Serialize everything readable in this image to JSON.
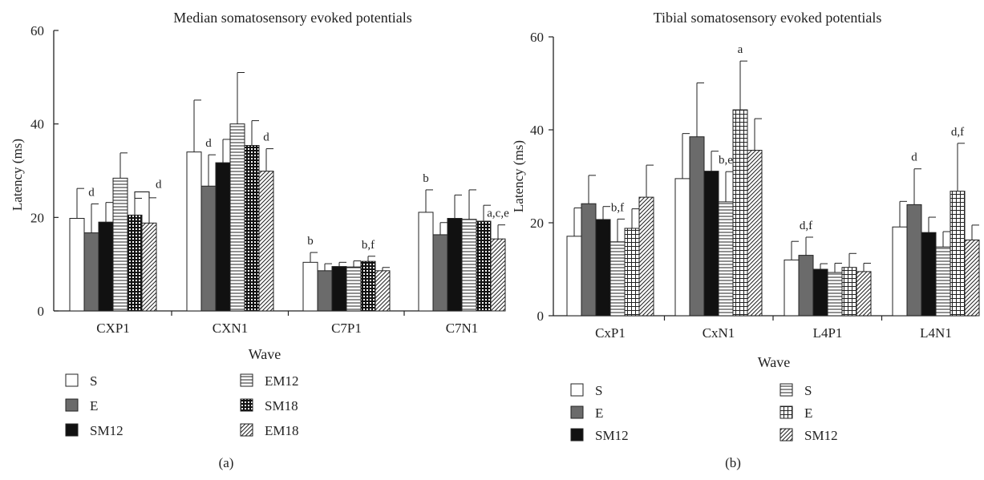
{
  "colors": {
    "solid_gray": "#6b6b6b",
    "solid_black": "#111111",
    "stroke": "#222222",
    "background": "#ffffff"
  },
  "chart_data": [
    {
      "type": "bar",
      "title": "Median somatosensory evoked potentials",
      "xlabel": "Wave",
      "ylabel": "Latency (ms)",
      "ylim": [
        0,
        60
      ],
      "yticks": [
        "0",
        "20",
        "40",
        "60"
      ],
      "grid": false,
      "panel_label": "(a)",
      "categories": [
        "CXP1",
        "CXN1",
        "C7P1",
        "C7N1"
      ],
      "series": [
        {
          "name": "S",
          "pattern": "white",
          "values": [
            19.8,
            34.0,
            10.4,
            21.1
          ],
          "errors": [
            6.4,
            11.1,
            2.1,
            4.8
          ]
        },
        {
          "name": "E",
          "pattern": "gray",
          "values": [
            16.7,
            26.7,
            8.6,
            16.3
          ],
          "errors": [
            6.2,
            6.7,
            1.5,
            2.6
          ]
        },
        {
          "name": "SM12",
          "pattern": "black",
          "values": [
            19.0,
            31.7,
            9.5,
            19.8
          ],
          "errors": [
            4.2,
            5.0,
            0.9,
            5.0
          ]
        },
        {
          "name": "EM12",
          "pattern": "hlines",
          "values": [
            28.4,
            40.0,
            9.4,
            19.6
          ],
          "errors": [
            5.4,
            11.0,
            1.3,
            6.3
          ]
        },
        {
          "name": "SM18",
          "pattern": "grid",
          "values": [
            20.5,
            35.4,
            10.6,
            19.2
          ],
          "errors": [
            3.6,
            5.3,
            1.1,
            3.4
          ]
        },
        {
          "name": "EM18",
          "pattern": "diag",
          "values": [
            18.8,
            29.9,
            8.6,
            15.4
          ],
          "errors": [
            5.4,
            4.8,
            0.7,
            3.0
          ]
        }
      ],
      "annotations": [
        {
          "text": "d",
          "category": 0,
          "series": 1
        },
        {
          "text": "d",
          "category": 0,
          "series": 4,
          "bracket_to_series": 5
        },
        {
          "text": "d",
          "category": 1,
          "series": 1
        },
        {
          "text": "d",
          "category": 1,
          "series": 5
        },
        {
          "text": "b",
          "category": 2,
          "series": 0
        },
        {
          "text": "b,f",
          "category": 2,
          "series": 4
        },
        {
          "text": "b",
          "category": 3,
          "series": 0
        },
        {
          "text": "a,c,e",
          "category": 3,
          "series": 5
        }
      ]
    },
    {
      "type": "bar",
      "title": "Tibial somatosensory evoked potentials",
      "xlabel": "Wave",
      "ylabel": "Latency (ms)",
      "ylim": [
        0,
        60
      ],
      "yticks": [
        "0",
        "20",
        "40",
        "60"
      ],
      "grid": false,
      "panel_label": "(b)",
      "categories": [
        "CxP1",
        "CxN1",
        "L4P1",
        "L4N1"
      ],
      "series": [
        {
          "name": "S",
          "pattern": "white",
          "values": [
            17.1,
            29.5,
            12.0,
            19.1
          ],
          "errors": [
            6.1,
            9.7,
            4.0,
            5.5
          ]
        },
        {
          "name": "E",
          "pattern": "gray",
          "values": [
            24.1,
            38.5,
            13.0,
            23.9
          ],
          "errors": [
            6.1,
            11.6,
            3.9,
            7.7
          ]
        },
        {
          "name": "SM12",
          "pattern": "black",
          "values": [
            20.7,
            31.1,
            10.0,
            17.9
          ],
          "errors": [
            2.8,
            4.3,
            1.2,
            3.3
          ]
        },
        {
          "name": "S",
          "pattern": "hlines",
          "values": [
            15.9,
            24.5,
            9.3,
            14.8
          ],
          "errors": [
            4.9,
            6.5,
            2.0,
            3.3
          ]
        },
        {
          "name": "E",
          "pattern": "vgrid",
          "values": [
            18.8,
            44.3,
            10.4,
            26.8
          ],
          "errors": [
            4.2,
            10.5,
            3.0,
            10.3
          ]
        },
        {
          "name": "SM12",
          "pattern": "diag",
          "values": [
            25.5,
            35.6,
            9.5,
            16.3
          ],
          "errors": [
            6.9,
            6.8,
            1.8,
            3.2
          ]
        }
      ],
      "annotations": [
        {
          "text": "b,f",
          "category": 0,
          "series": 3
        },
        {
          "text": "b,e",
          "category": 1,
          "series": 3
        },
        {
          "text": "a",
          "category": 1,
          "series": 4
        },
        {
          "text": "d,f",
          "category": 2,
          "series": 1
        },
        {
          "text": "d",
          "category": 3,
          "series": 1
        },
        {
          "text": "d,f",
          "category": 3,
          "series": 4
        }
      ]
    }
  ]
}
